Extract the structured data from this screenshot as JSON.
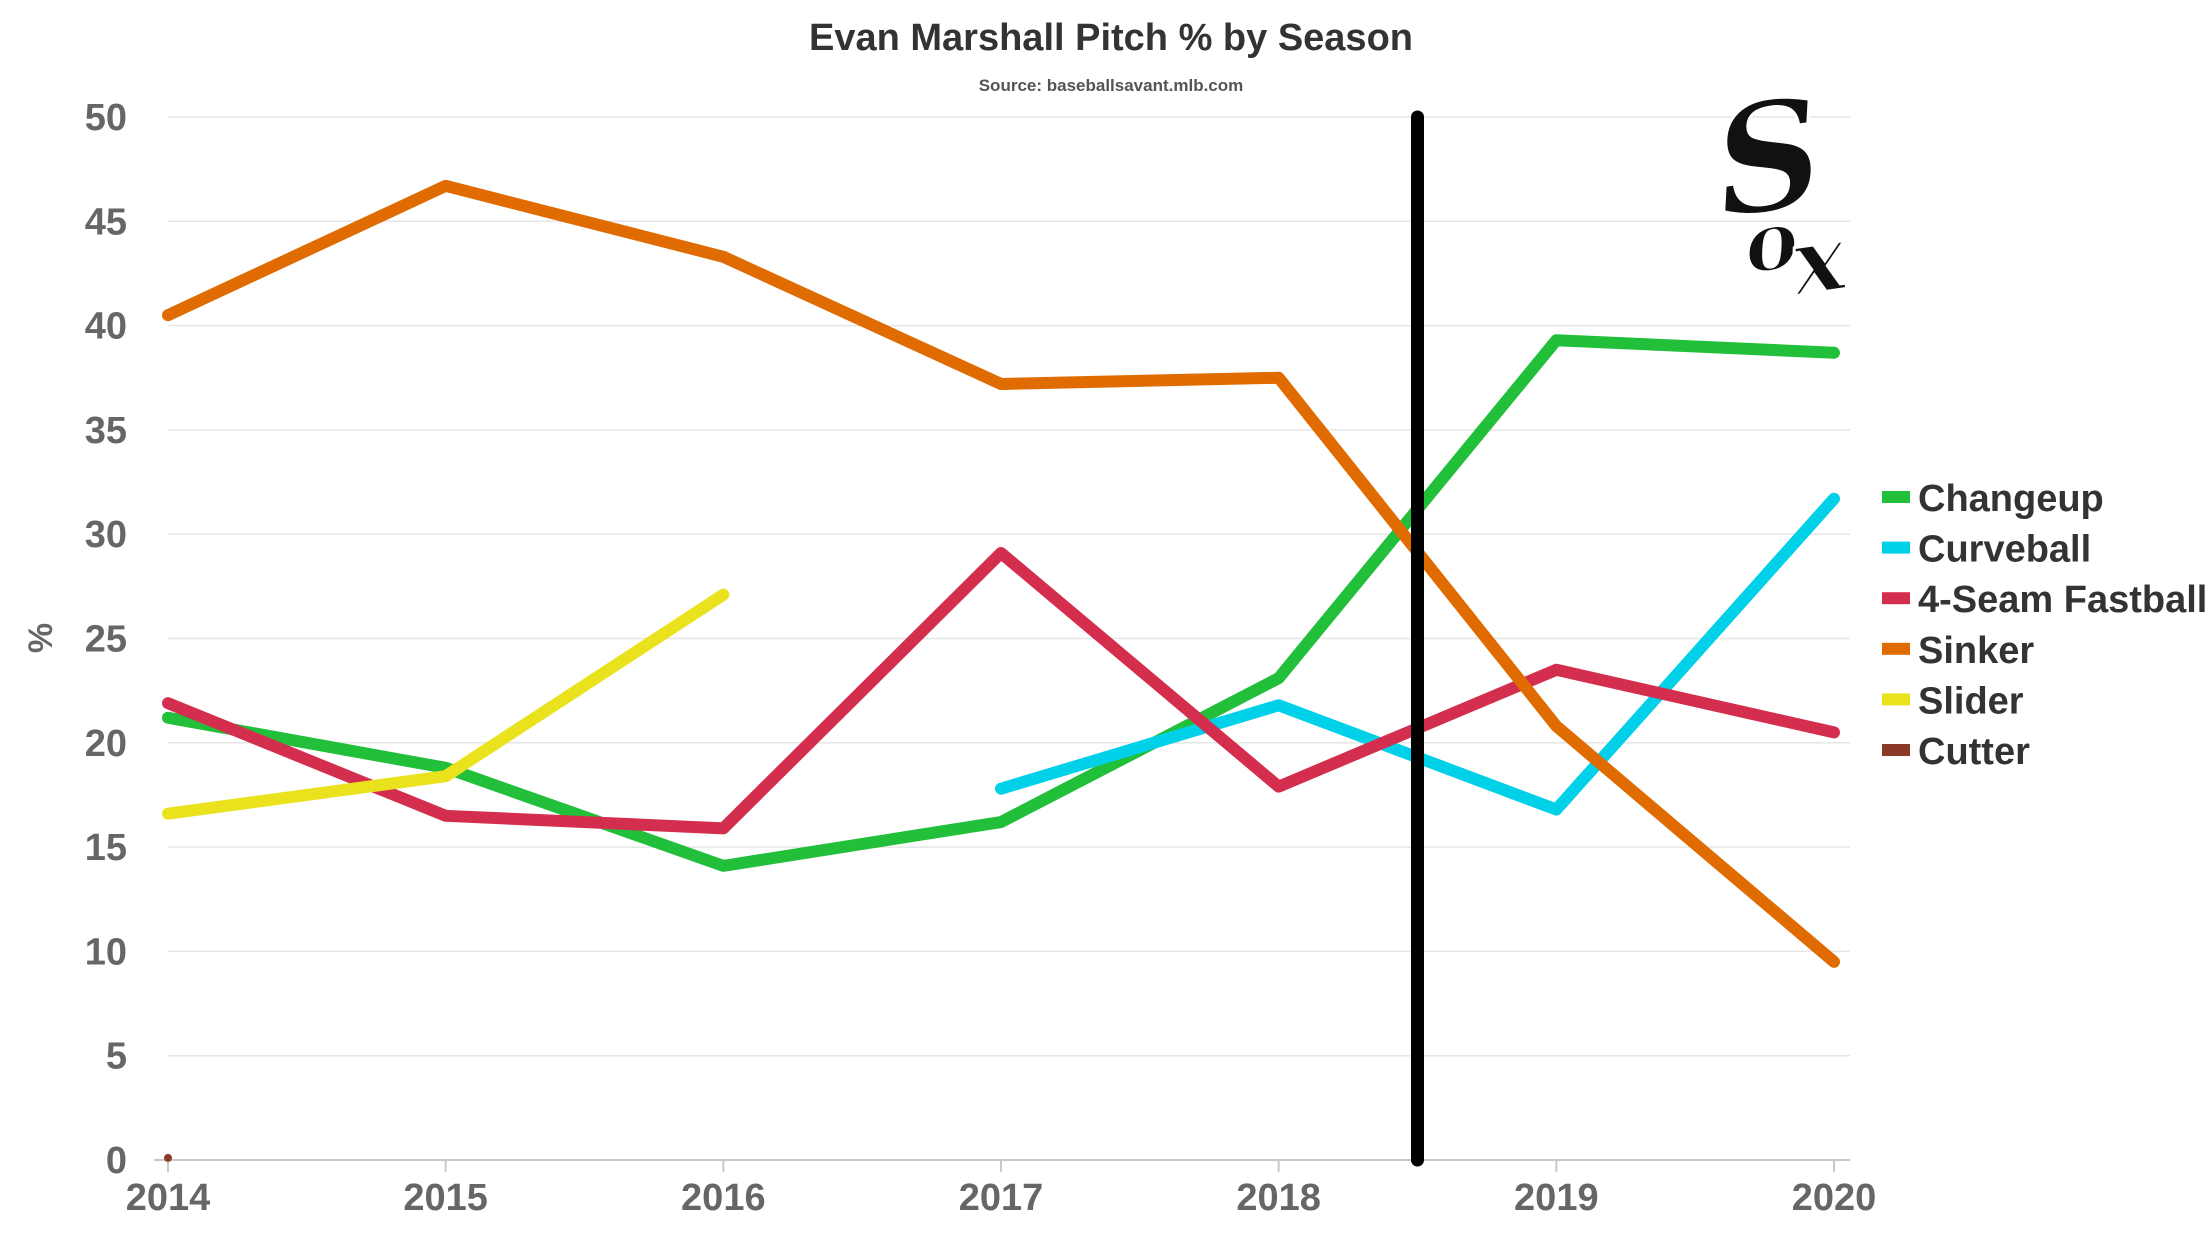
{
  "chart_data": {
    "type": "line",
    "title": "Evan Marshall Pitch % by Season",
    "subtitle": "Source: baseballsavant.mlb.com",
    "xlabel": "",
    "ylabel": "%",
    "categories": [
      "2014",
      "2015",
      "2016",
      "2017",
      "2018",
      "2019",
      "2020"
    ],
    "ylim": [
      0,
      50
    ],
    "yticks": [
      0,
      5,
      10,
      15,
      20,
      25,
      30,
      35,
      40,
      45,
      50
    ],
    "grid": true,
    "legend_position": "right",
    "series": [
      {
        "name": "Changeup",
        "color": "#21bf3a",
        "values": [
          21.2,
          18.8,
          14.1,
          16.2,
          23.1,
          39.3,
          38.7
        ]
      },
      {
        "name": "Curveball",
        "color": "#00d0e8",
        "values": [
          null,
          null,
          null,
          17.8,
          21.8,
          16.8,
          31.7
        ]
      },
      {
        "name": "4-Seam Fastball",
        "color": "#d42e4e",
        "values": [
          21.9,
          16.5,
          15.9,
          29.1,
          17.9,
          23.5,
          20.5
        ]
      },
      {
        "name": "Sinker",
        "color": "#e06b00",
        "values": [
          40.5,
          46.7,
          43.3,
          37.2,
          37.5,
          20.8,
          9.5
        ]
      },
      {
        "name": "Slider",
        "color": "#eae21c",
        "values": [
          16.6,
          18.4,
          27.1,
          null,
          null,
          null,
          null
        ]
      },
      {
        "name": "Cutter",
        "color": "#8b3a2a",
        "values": [
          0.1,
          null,
          null,
          null,
          null,
          null,
          null
        ]
      }
    ],
    "vertical_marker": {
      "x": 2018.5,
      "color": "#000000"
    },
    "logo": {
      "name": "sox-logo",
      "text": "Sox"
    }
  }
}
